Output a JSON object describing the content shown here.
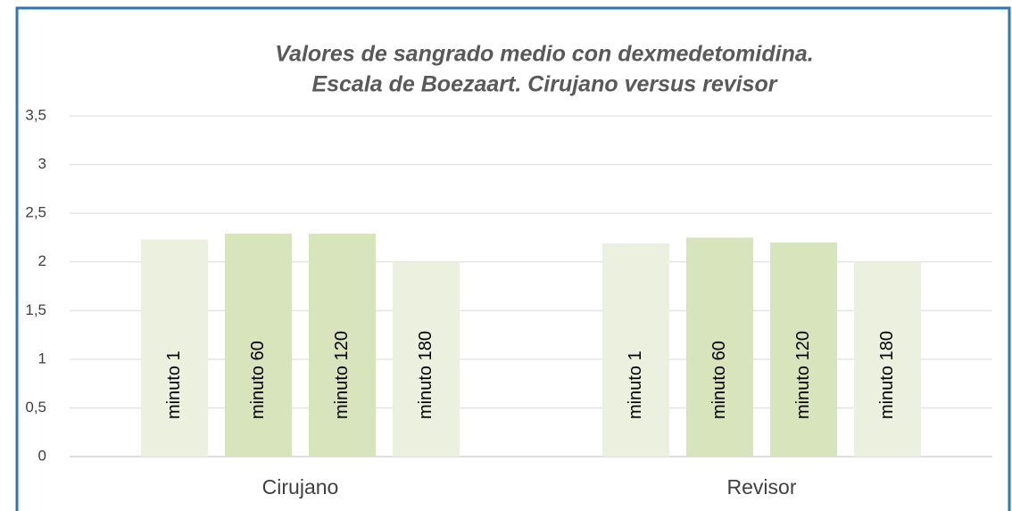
{
  "chart_data": {
    "type": "bar",
    "title": [
      "Valores de sangrado medio con dexmedetomidina.",
      "Escala de Boezaart. Cirujano versus revisor"
    ],
    "categories": [
      "Cirujano",
      "Revisor"
    ],
    "series": [
      {
        "name": "minuto 1",
        "color": "#ebf1de",
        "values": [
          2.23,
          2.19
        ]
      },
      {
        "name": "minuto 60",
        "color": "#d8e4bc",
        "values": [
          2.29,
          2.25
        ]
      },
      {
        "name": "minuto 120",
        "color": "#d8e4bc",
        "values": [
          2.29,
          2.2
        ]
      },
      {
        "name": "minuto 180",
        "color": "#ebf1de",
        "values": [
          2.0,
          2.0
        ]
      }
    ],
    "ylim": [
      0,
      3.5
    ],
    "yticks": [
      0,
      {
        "value": 0.5,
        "label": "0,5"
      },
      1,
      {
        "value": 1.5,
        "label": "1,5"
      },
      2,
      {
        "value": 2.5,
        "label": "2,5"
      },
      3,
      {
        "value": 3.5,
        "label": "3,5"
      }
    ],
    "grid": true
  }
}
